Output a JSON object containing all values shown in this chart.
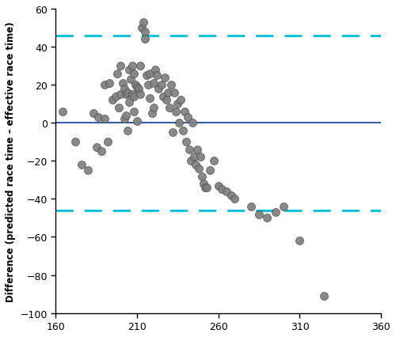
{
  "ylabel": "Difference (predicted race time – effective race time)",
  "xlim": [
    160,
    360
  ],
  "ylim": [
    -100,
    60
  ],
  "xticks": [
    160,
    210,
    260,
    310,
    360
  ],
  "yticks": [
    -100,
    -80,
    -60,
    -40,
    -20,
    0,
    20,
    40,
    60
  ],
  "mean_line": 0,
  "upper_loa": 46,
  "lower_loa": -46,
  "mean_line_color": "#3b5ba5",
  "loa_color": "#00bcd4",
  "dot_color": "#7f7f7f",
  "dot_edge_color": "#4a4a4a",
  "scatter_x": [
    164,
    172,
    176,
    180,
    183,
    185,
    186,
    188,
    190,
    190,
    192,
    193,
    195,
    197,
    198,
    199,
    200,
    200,
    201,
    202,
    202,
    203,
    203,
    204,
    204,
    205,
    205,
    206,
    207,
    207,
    208,
    208,
    208,
    209,
    210,
    210,
    211,
    212,
    212,
    213,
    214,
    215,
    215,
    216,
    217,
    218,
    218,
    219,
    220,
    220,
    221,
    222,
    223,
    225,
    226,
    227,
    228,
    229,
    230,
    231,
    232,
    233,
    234,
    235,
    236,
    237,
    238,
    239,
    240,
    241,
    242,
    243,
    244,
    245,
    246,
    247,
    248,
    249,
    250,
    251,
    252,
    253,
    255,
    257,
    260,
    262,
    265,
    268,
    270,
    280,
    285,
    290,
    295,
    300,
    310,
    325
  ],
  "scatter_y": [
    6,
    -10,
    -22,
    -25,
    5,
    -13,
    3,
    -15,
    2,
    20,
    -10,
    21,
    12,
    14,
    26,
    8,
    30,
    15,
    21,
    2,
    18,
    15,
    4,
    16,
    -4,
    28,
    11,
    23,
    30,
    15,
    26,
    14,
    6,
    20,
    1,
    19,
    18,
    30,
    15,
    50,
    53,
    48,
    44,
    25,
    20,
    26,
    13,
    5,
    21,
    8,
    28,
    25,
    18,
    20,
    14,
    24,
    12,
    16,
    8,
    20,
    -5,
    16,
    6,
    10,
    0,
    12,
    -4,
    6,
    -10,
    3,
    -14,
    -20,
    0,
    -18,
    -22,
    -14,
    -24,
    -18,
    -28,
    -32,
    -34,
    -34,
    -25,
    -20,
    -33,
    -35,
    -36,
    -38,
    -40,
    -44,
    -48,
    -50,
    -47,
    -44,
    -62,
    -91
  ]
}
